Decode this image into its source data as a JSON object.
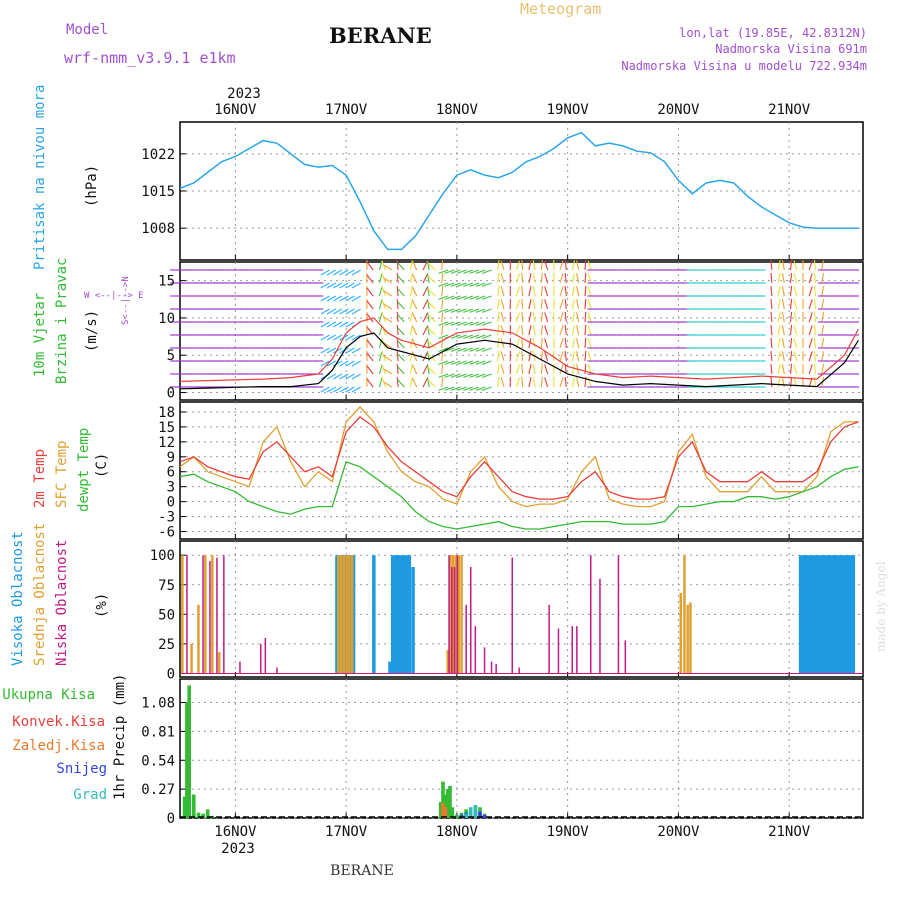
{
  "header": {
    "model_label": "Model",
    "model_name": "wrf-nmm_v3.9.1 e1km",
    "station": "BERANE",
    "product": "Meteogram",
    "coords": "lon,lat (19.85E, 42.8312N)",
    "elevation": "Nadmorska Visina 691m",
    "model_elevation": "Nadmorska Visina u modelu 722.934m",
    "footer_station": "BERANE",
    "watermark": "made by Angel"
  },
  "colors": {
    "pressure": "#2aa6e8",
    "temp2m": "#e8413c",
    "sfc": "#e0a030",
    "dewpt": "#33bb33",
    "high_cloud": "#1e9be0",
    "mid_cloud": "#e0a030",
    "low_cloud": "#c21a86",
    "total_precip": "#33bb33",
    "conv_precip": "#e8413c",
    "frozen": "#e87a30",
    "snow": "#3344dd",
    "graupel": "#33bbbb",
    "magenta": "#a050d0",
    "wind_speed": "#000000",
    "gust": "#e8413c"
  },
  "time_axis": {
    "year": "2023",
    "ticks": [
      "16NOV",
      "17NOV",
      "18NOV",
      "19NOV",
      "20NOV",
      "21NOV"
    ]
  },
  "chart_data": [
    {
      "type": "line",
      "title": "Pritisak na nivou mora",
      "ylabel": "(hPa)",
      "ylim": [
        1002,
        1028
      ],
      "yticks": [
        "1008",
        "1015",
        "1022"
      ],
      "ytick_values": [
        1008,
        1015,
        1022
      ],
      "x_hours": [
        0,
        3,
        6,
        9,
        12,
        15,
        18,
        21,
        24,
        27,
        30,
        33,
        36,
        39,
        42,
        45,
        48,
        51,
        54,
        57,
        60,
        63,
        66,
        69,
        72,
        75,
        78,
        81,
        84,
        87,
        90,
        93,
        96,
        99,
        102,
        105,
        108,
        111,
        114,
        117,
        120,
        123,
        126,
        129,
        132,
        135,
        138,
        141,
        144,
        147
      ],
      "series": [
        {
          "values": [
            1015.5,
            1016.5,
            1018.5,
            1020.5,
            1021.5,
            1023,
            1024.5,
            1024,
            1022,
            1020,
            1019.5,
            1019.8,
            1018,
            1013,
            1007.5,
            1004,
            1004,
            1006.5,
            1010.5,
            1014.5,
            1018,
            1019,
            1018,
            1017.5,
            1018.5,
            1020.5,
            1021.5,
            1023,
            1025,
            1026,
            1023.5,
            1024,
            1023.5,
            1022.5,
            1022.2,
            1020.5,
            1017,
            1014.5,
            1016.5,
            1017,
            1016.5,
            1014,
            1012,
            1010.5,
            1009,
            1008.2,
            1008,
            1008,
            1008,
            1008
          ]
        }
      ]
    },
    {
      "type": "line",
      "title": "10m Vjetar Brzina i Pravac",
      "ylabel": "(m/s)",
      "ylim": [
        -1,
        17.5
      ],
      "yticks": [
        "0",
        "5",
        "10",
        "15"
      ],
      "ytick_values": [
        0,
        5,
        10,
        15
      ],
      "x_hours": [
        0,
        6,
        12,
        18,
        24,
        30,
        33,
        36,
        39,
        42,
        45,
        48,
        51,
        54,
        57,
        60,
        66,
        72,
        78,
        84,
        90,
        96,
        102,
        108,
        114,
        120,
        126,
        132,
        138,
        144,
        147
      ],
      "series": [
        {
          "values": [
            0.5,
            0.6,
            0.7,
            0.8,
            0.8,
            1.2,
            3.0,
            6.0,
            7.5,
            8.0,
            6.0,
            5.5,
            5.0,
            4.5,
            5.5,
            6.5,
            7.0,
            6.5,
            4.5,
            2.5,
            1.5,
            1.0,
            1.2,
            1.0,
            0.8,
            1.0,
            1.2,
            1.0,
            0.8,
            4.0,
            7.0
          ]
        },
        {
          "values": [
            1.5,
            1.6,
            1.7,
            1.8,
            2.0,
            2.5,
            4.5,
            8.0,
            9.5,
            10.0,
            8.0,
            7.0,
            6.5,
            6.0,
            7.0,
            8.0,
            8.5,
            8.0,
            6.0,
            3.5,
            2.5,
            2.0,
            2.2,
            2.0,
            1.8,
            2.0,
            2.2,
            2.0,
            1.8,
            5.0,
            8.5
          ]
        }
      ]
    },
    {
      "type": "line",
      "title": "2m Temp / SFC Temp / dewpt Temp",
      "ylabel": "(C)",
      "ylim": [
        -7.5,
        20
      ],
      "yticks": [
        "-6",
        "-3",
        "0",
        "3",
        "6",
        "9",
        "12",
        "15",
        "18"
      ],
      "ytick_values": [
        -6,
        -3,
        0,
        3,
        6,
        9,
        12,
        15,
        18
      ],
      "x_hours": [
        0,
        3,
        6,
        9,
        12,
        15,
        18,
        21,
        24,
        27,
        30,
        33,
        36,
        39,
        42,
        45,
        48,
        51,
        54,
        57,
        60,
        63,
        66,
        69,
        72,
        75,
        78,
        81,
        84,
        87,
        90,
        93,
        96,
        99,
        102,
        105,
        108,
        111,
        114,
        117,
        120,
        123,
        126,
        129,
        132,
        135,
        138,
        141,
        144,
        147
      ],
      "series": [
        {
          "name": "2m Temp",
          "values": [
            8,
            9,
            7,
            6,
            5,
            4.5,
            10,
            12,
            9,
            6,
            7,
            5,
            14,
            17,
            15,
            11,
            8,
            6,
            4,
            2,
            1,
            5,
            8,
            5,
            2,
            1,
            0.5,
            0.5,
            1,
            4,
            6,
            2,
            1,
            0.5,
            0.5,
            1,
            9,
            12,
            6,
            4,
            4,
            4,
            6,
            4,
            4,
            4,
            6,
            12,
            15,
            16
          ]
        },
        {
          "name": "SFC Temp",
          "values": [
            7,
            9,
            6,
            5,
            4,
            3,
            12,
            15,
            8,
            3,
            6,
            4,
            16,
            19,
            16,
            10,
            6,
            4,
            3,
            0.5,
            -0.5,
            6,
            9,
            3,
            0,
            -1,
            -0.5,
            -0.5,
            0.5,
            6,
            9,
            0.5,
            -0.5,
            -1,
            -1,
            0,
            10,
            13.5,
            5,
            2,
            2,
            2,
            5,
            2,
            2,
            2,
            5,
            14,
            16,
            16
          ]
        },
        {
          "name": "dewpt Temp",
          "values": [
            5,
            5.5,
            4,
            3,
            2,
            0,
            -1,
            -2,
            -2.5,
            -1.5,
            -1,
            -1,
            8,
            7,
            5,
            3,
            1,
            -2,
            -4,
            -5,
            -5.5,
            -5,
            -4.5,
            -4,
            -5,
            -5.5,
            -5.5,
            -5,
            -4.5,
            -4,
            -4,
            -4,
            -4.5,
            -4.5,
            -4.5,
            -4,
            -1,
            -1,
            -0.5,
            0,
            0,
            1,
            1,
            0.5,
            1,
            2,
            3,
            5,
            6.5,
            7
          ]
        }
      ]
    },
    {
      "type": "bar",
      "title": "Visoka Oblacnost / Srednja Oblacnost / Niska Oblacnost",
      "ylabel": "(%)",
      "ylim": [
        -3,
        112
      ],
      "yticks": [
        "0",
        "25",
        "50",
        "75",
        "100"
      ],
      "ytick_values": [
        0,
        25,
        50,
        75,
        100
      ],
      "series": [
        {
          "name": "Visoka Oblacnost",
          "x_hours": [
            34,
            34.6,
            35.2,
            35.8,
            36.4,
            37,
            37.6,
            42,
            45.5,
            46.1,
            46.7,
            47.3,
            47.9,
            48.5,
            49.1,
            49.7,
            50.5,
            134.5,
            135.1,
            135.7,
            136.3,
            136.9,
            137.5,
            138.1,
            138.7,
            139.3,
            139.9,
            140.5,
            141.1,
            141.7,
            142.3,
            142.9,
            143.5,
            144.1,
            144.7,
            145.3,
            145.9
          ],
          "values": [
            100,
            100,
            100,
            100,
            100,
            100,
            100,
            100,
            10,
            100,
            100,
            100,
            100,
            100,
            100,
            100,
            90,
            100,
            100,
            100,
            100,
            100,
            100,
            100,
            100,
            100,
            100,
            100,
            100,
            100,
            100,
            100,
            100,
            100,
            100,
            100,
            100
          ]
        },
        {
          "name": "Srednja Oblacnost",
          "x_hours": [
            0.5,
            2.5,
            4,
            5.5,
            7,
            8.5,
            34.3,
            34.9,
            35.5,
            36.1,
            36.7,
            37.3,
            58,
            58.6,
            59.2,
            59.8,
            60.4,
            61,
            108.5,
            109.3,
            110,
            110.6
          ],
          "values": [
            100,
            25,
            58,
            100,
            100,
            18,
            100,
            100,
            100,
            100,
            100,
            100,
            20,
            100,
            100,
            100,
            100,
            100,
            68,
            100,
            58,
            60
          ]
        },
        {
          "name": "Niska Oblacnost",
          "x_hours": [
            1.5,
            5,
            6.5,
            8,
            9.5,
            13,
            17.5,
            18.5,
            21,
            58.3,
            58.9,
            59.5,
            60.1,
            62,
            63,
            64,
            66,
            67.5,
            68.5,
            72,
            73.5,
            80,
            82,
            85,
            86,
            89,
            91,
            95,
            96.5
          ],
          "values": [
            100,
            100,
            95,
            98,
            100,
            10,
            25,
            30,
            5,
            100,
            90,
            90,
            100,
            58,
            90,
            40,
            22,
            10,
            8,
            98,
            5,
            58,
            38,
            40,
            40,
            100,
            80,
            100,
            28
          ]
        }
      ]
    },
    {
      "type": "bar",
      "title": "Ukupna Kisa / Konvek.Kisa / Zaledj.Kisa / Snijeg / Grad",
      "ylabel": "1hr Precip (mm)",
      "ylim": [
        0,
        1.3
      ],
      "yticks": [
        "0",
        "0.27",
        "0.54",
        "0.81",
        "1.08"
      ],
      "ytick_values": [
        0,
        0.27,
        0.54,
        0.81,
        1.08
      ],
      "series": [
        {
          "name": "Ukupna Kisa",
          "x_hours": [
            1,
            1.5,
            2,
            3,
            4,
            5,
            6,
            7,
            56.5,
            57,
            57.5,
            58,
            58.5,
            59,
            60,
            61,
            62,
            63,
            64,
            65,
            66
          ],
          "values": [
            0.2,
            1.08,
            1.24,
            0.22,
            0.05,
            0.04,
            0.08,
            0.02,
            0.15,
            0.34,
            0.22,
            0.27,
            0.3,
            0.1,
            0.03,
            0.05,
            0.08,
            0.1,
            0.12,
            0.1,
            0.04
          ]
        },
        {
          "name": "Konvek.Kisa",
          "x_hours": [],
          "values": []
        },
        {
          "name": "Zaledj.Kisa",
          "x_hours": [
            57,
            57.5
          ],
          "values": [
            0.14,
            0.1
          ]
        },
        {
          "name": "Snijeg",
          "x_hours": [
            61,
            62,
            63,
            64,
            65,
            66
          ],
          "values": [
            0.03,
            0.05,
            0.06,
            0.08,
            0.06,
            0.03
          ]
        },
        {
          "name": "Grad",
          "x_hours": [
            62,
            63,
            64
          ],
          "values": [
            0.04,
            0.1,
            0.12
          ]
        }
      ]
    }
  ],
  "labels": {
    "pressure_title": "Pritisak na nivou mora",
    "pressure_unit": "(hPa)",
    "wind_title_1": "10m Vjetar",
    "wind_title_2": "Brzina i Pravac",
    "wind_unit": "(m/s)",
    "compass": "W  <--|--> E",
    "compass_v": "S<--|-->N",
    "temp_2m": "2m Temp",
    "temp_sfc": "SFC Temp",
    "temp_dew": "dewpt Temp",
    "temp_unit": "(C)",
    "cloud_high": "Visoka Oblacnost",
    "cloud_mid": "Srednja Oblacnost",
    "cloud_low": "Niska Oblacnost",
    "cloud_unit": "(%)",
    "precip_unit": "1hr Precip (mm)",
    "legend": [
      "Ukupna Kisa",
      "Konvek.Kisa",
      "Zaledj.Kisa",
      "Snijeg",
      "Grad"
    ]
  }
}
